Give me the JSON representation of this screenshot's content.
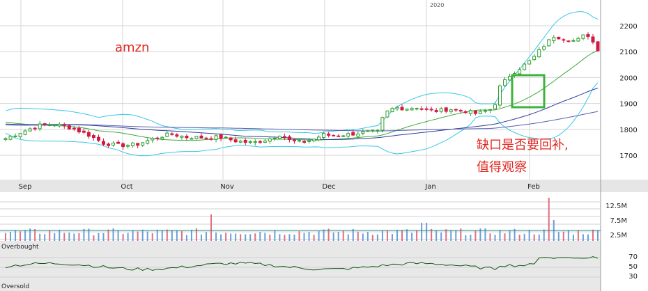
{
  "chart_data": {
    "type": "candlestick",
    "title": "amzn",
    "year_label": "2020",
    "annotation": {
      "line1": "缺口是否要回补,",
      "line2": "值得观察"
    },
    "price_axis": {
      "ticks": [
        1700,
        1800,
        1900,
        2000,
        2100,
        2200
      ],
      "ylim": [
        1660,
        2290
      ]
    },
    "x_labels": [
      "Sep",
      "Oct",
      "Nov",
      "Dec",
      "Jan",
      "Feb"
    ],
    "volume_axis": {
      "labels": [
        "12.5M",
        "7.5M",
        "2.5M"
      ]
    },
    "oscillator": {
      "top_label": "Overbought",
      "bottom_label": "Oversold",
      "ticks": [
        70,
        50,
        30
      ]
    },
    "colors": {
      "up": "#2e9e2e",
      "down": "#d11a44",
      "bollinger": "#35c7e6",
      "ma_blue": "#2b3c9e",
      "ma_green": "#3aa83a",
      "gap_box": "#3cb33c",
      "title_red": "#e0261e",
      "vol_up": "#6a9fd8",
      "vol_down": "#e06f80"
    }
  }
}
